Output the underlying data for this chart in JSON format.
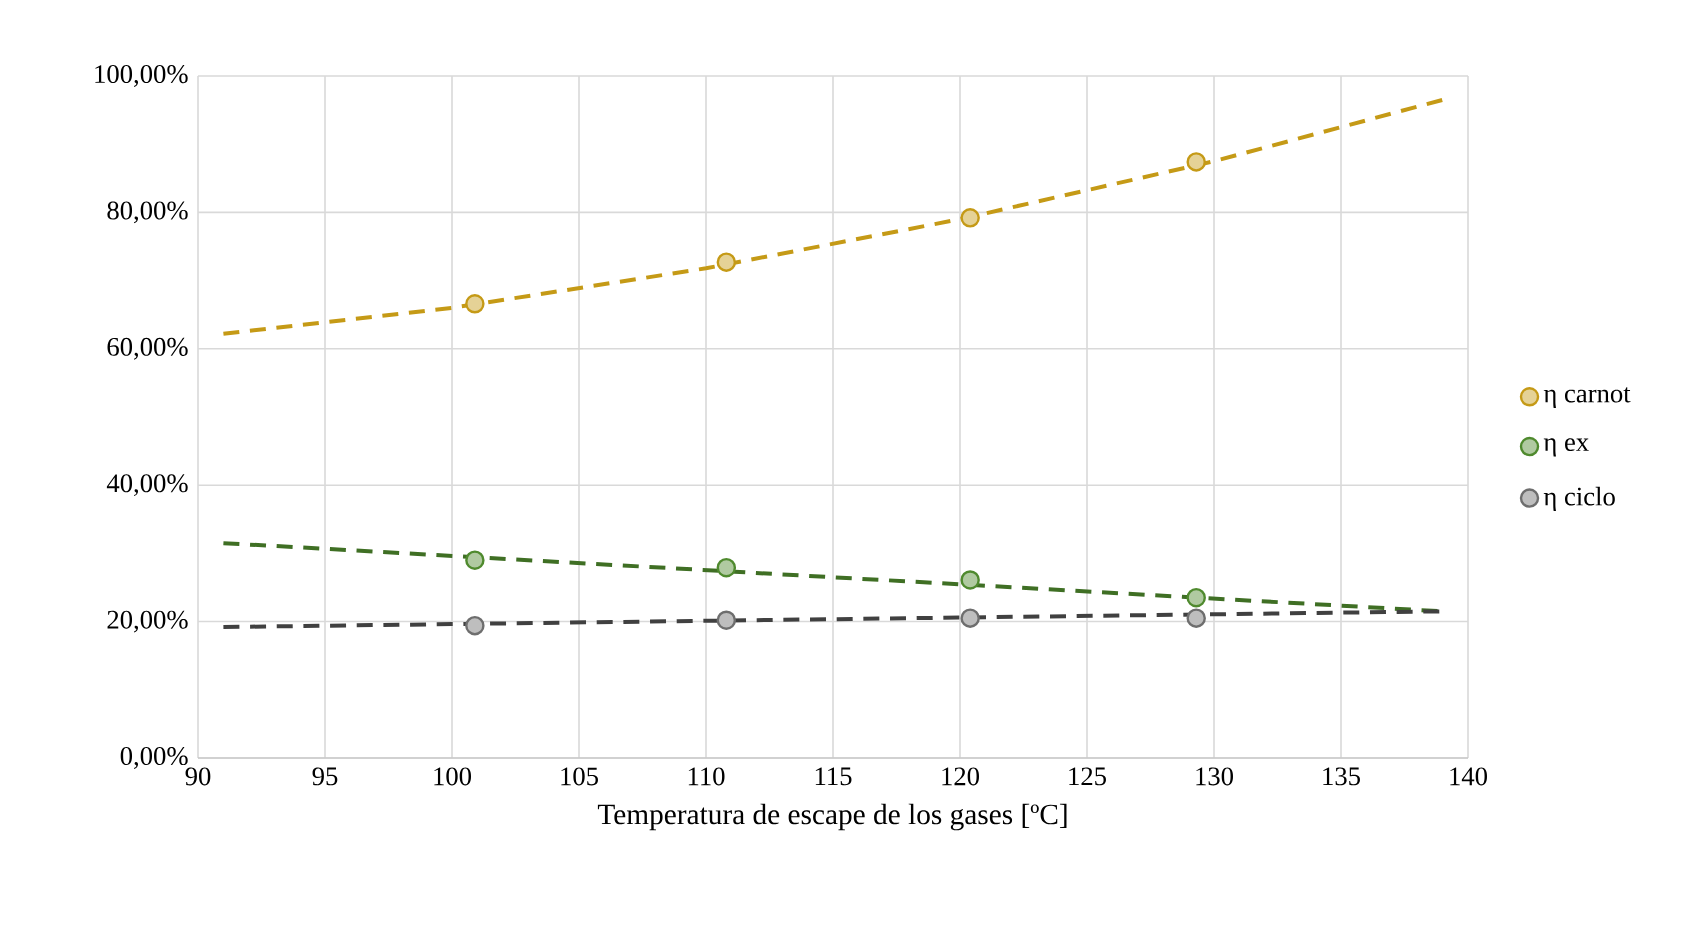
{
  "chart_data": {
    "type": "line",
    "xlabel": "Temperatura de escape de los gases [ºC]",
    "xlim": [
      90,
      140
    ],
    "xticks": [
      90,
      95,
      100,
      105,
      110,
      115,
      120,
      125,
      130,
      135,
      140
    ],
    "ylim": [
      0,
      100
    ],
    "yticks": [
      {
        "value": 0,
        "label": "0,00%"
      },
      {
        "value": 20,
        "label": "20,00%"
      },
      {
        "value": 40,
        "label": "40,00%"
      },
      {
        "value": 60,
        "label": "60,00%"
      },
      {
        "value": 80,
        "label": "80,00%"
      },
      {
        "value": 100,
        "label": "100,00%"
      }
    ],
    "grid": true,
    "legend": "right",
    "series": [
      {
        "name": "η carnot",
        "type": "scatter",
        "marker": "circle",
        "color": "#c59a16",
        "x": [
          100.9,
          110.8,
          120.4,
          129.3
        ],
        "values": [
          66.6,
          72.7,
          79.2,
          87.4
        ]
      },
      {
        "name": "η ex",
        "type": "scatter",
        "marker": "circle",
        "color": "#4f8a2e",
        "x": [
          100.9,
          110.8,
          120.4,
          129.3
        ],
        "values": [
          29.0,
          27.9,
          26.1,
          23.5
        ]
      },
      {
        "name": "η ciclo",
        "type": "scatter",
        "marker": "circle",
        "color": "#6e6e6e",
        "x": [
          100.9,
          110.8,
          120.4,
          129.3
        ],
        "values": [
          19.4,
          20.2,
          20.5,
          20.5
        ]
      },
      {
        "marker": "none",
        "line_style": "dashed",
        "color": "#c59a16",
        "x": [
          91,
          100,
          110,
          120,
          130,
          139
        ],
        "values": [
          62.2,
          66.0,
          71.8,
          79.0,
          87.5,
          96.5
        ]
      },
      {
        "marker": "none",
        "line_style": "dashed",
        "color": "#3f6f24",
        "x": [
          91,
          139
        ],
        "values": [
          31.5,
          21.5
        ]
      },
      {
        "marker": "none",
        "line_style": "dashed",
        "color": "#404040",
        "x": [
          91,
          139
        ],
        "values": [
          19.2,
          21.5
        ]
      }
    ]
  }
}
